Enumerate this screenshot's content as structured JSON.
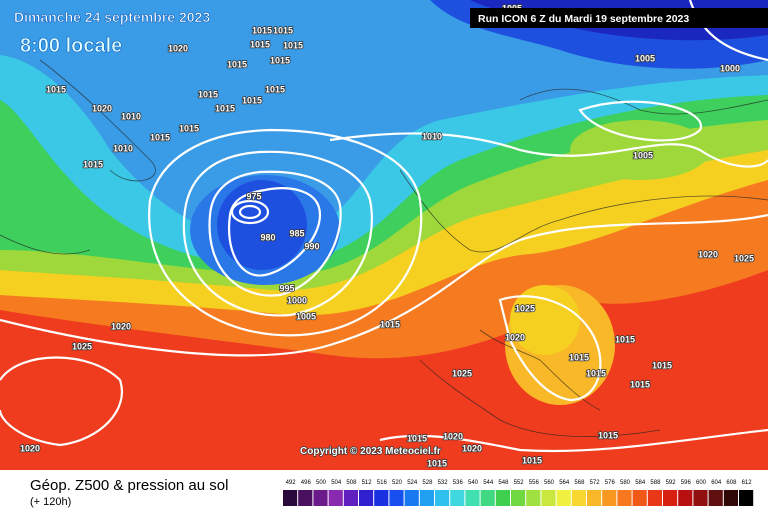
{
  "header": {
    "date": "Dimanche 24 septembre 2023",
    "time": "8:00 locale",
    "run": "Run ICON 6 Z du Mardi 19 septembre 2023"
  },
  "isobar_labels": [
    1020,
    1015,
    1015,
    1015,
    1015,
    1015,
    1015,
    1015,
    1015,
    1015,
    1015,
    1015,
    1015,
    1015,
    1020,
    1010,
    1010,
    1015,
    1005,
    1005,
    1000,
    1010,
    1005,
    975,
    980,
    985,
    990,
    995,
    1000,
    1005,
    1015,
    1020,
    1025,
    1025,
    1020,
    1025,
    1015,
    1015,
    1015,
    1015,
    1015,
    1015,
    1020,
    1025,
    1020,
    1015,
    1020,
    1015,
    1020,
    1015
  ],
  "copyright": "Copyright © 2023 Meteociel.fr",
  "legend": {
    "title": "Géop. Z500 & pression au sol",
    "subtitle": "(+ 120h)",
    "scale": [
      492,
      496,
      500,
      504,
      508,
      512,
      516,
      520,
      524,
      528,
      532,
      536,
      540,
      544,
      548,
      552,
      556,
      560,
      564,
      568,
      572,
      576,
      580,
      584,
      588,
      592,
      596,
      600,
      604,
      608,
      612
    ],
    "colors": [
      "#2a0a3a",
      "#4a1060",
      "#6a1a8a",
      "#8a2ab0",
      "#6020c0",
      "#3020d0",
      "#1830e0",
      "#1850f0",
      "#1878f0",
      "#20a0f0",
      "#30c0f0",
      "#40d8e0",
      "#40e0b0",
      "#40d880",
      "#40d050",
      "#70d840",
      "#a0e040",
      "#c8e840",
      "#f0f040",
      "#f8d830",
      "#f8b828",
      "#f89820",
      "#f87820",
      "#f05818",
      "#e83818",
      "#d82010",
      "#b81010",
      "#901010",
      "#601010",
      "#300808",
      "#000000"
    ]
  }
}
